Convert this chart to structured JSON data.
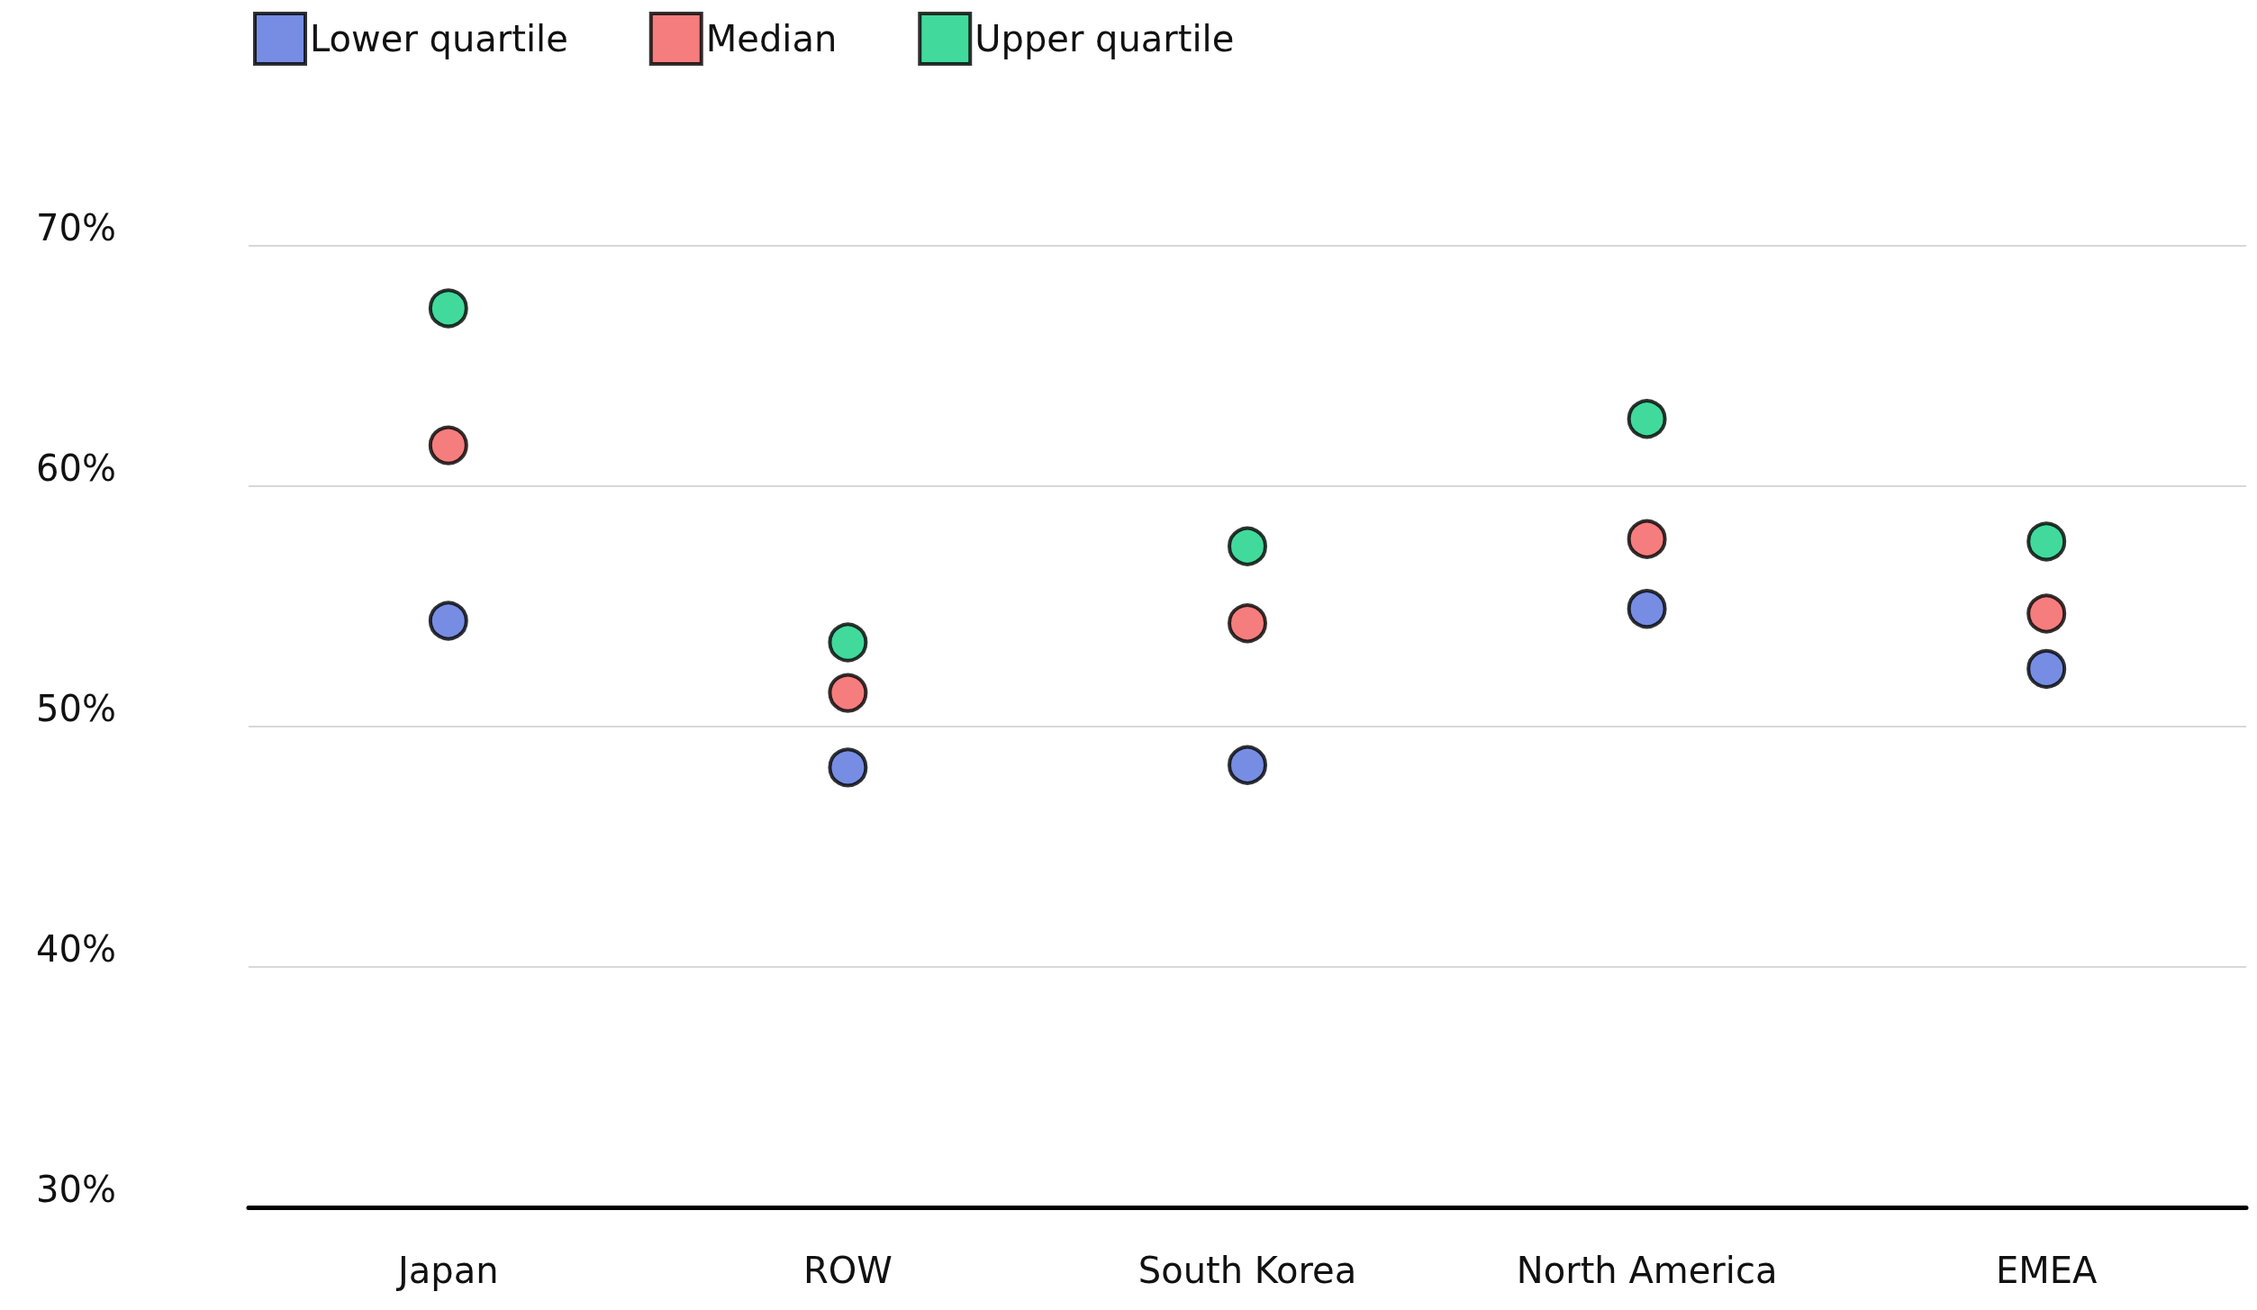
{
  "chart_data": {
    "type": "scatter",
    "categories": [
      "Japan",
      "ROW",
      "South Korea",
      "North America",
      "EMEA"
    ],
    "series": [
      {
        "name": "Lower quartile",
        "color": "#5470dc",
        "values": [
          54.4,
          48.3,
          48.4,
          54.9,
          52.4
        ]
      },
      {
        "name": "Median",
        "color": "#f25c5c",
        "values": [
          61.7,
          51.4,
          54.3,
          57.8,
          54.7
        ]
      },
      {
        "name": "Upper quartile",
        "color": "#12d183",
        "values": [
          67.4,
          53.5,
          57.5,
          62.8,
          57.7
        ]
      }
    ],
    "ylim": [
      30,
      70
    ],
    "yticks": [
      {
        "value": 30,
        "label": "30%"
      },
      {
        "value": 40,
        "label": "40%"
      },
      {
        "value": 50,
        "label": "50%"
      },
      {
        "value": 60,
        "label": "60%"
      },
      {
        "value": 70,
        "label": "70%"
      }
    ],
    "grid": "y",
    "legend": "top left",
    "marker": "circle"
  }
}
